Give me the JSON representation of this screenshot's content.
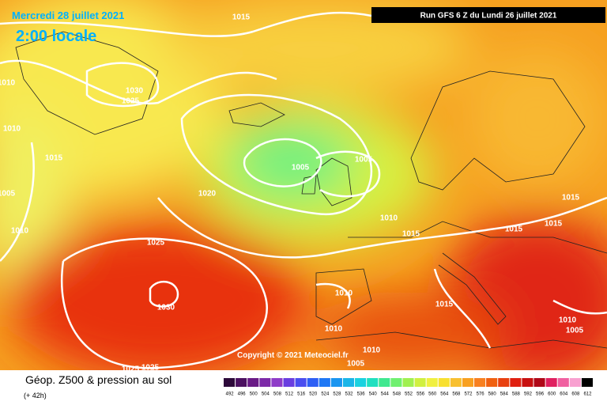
{
  "header": {
    "date": "Mercredi 28 juillet 2021",
    "time": "2:00 locale",
    "run": "Run GFS 6 Z du Lundi 26 juillet 2021"
  },
  "copyright": "Copyright © 2021 Meteociel.fr",
  "footer": {
    "title": "Géop. Z500 & pression au sol",
    "lead": "(+ 42h)"
  },
  "isobars": [
    1015,
    1030,
    1025,
    1010,
    1010,
    1015,
    1005,
    1010,
    1020,
    1005,
    1005,
    1010,
    1015,
    1015,
    1015,
    1015,
    1025,
    1030,
    1010,
    1015,
    1010,
    1010,
    1005,
    1010,
    1005,
    1025,
    1025
  ],
  "scale": {
    "labels": [
      492,
      496,
      500,
      504,
      508,
      512,
      516,
      520,
      524,
      528,
      532,
      536,
      540,
      544,
      548,
      552,
      556,
      560,
      564,
      568,
      572,
      576,
      580,
      584,
      588,
      592,
      596,
      600,
      604,
      608,
      612
    ],
    "colors": [
      "#2d0a3a",
      "#4b1060",
      "#6a1a86",
      "#7d2aa8",
      "#8f3cc8",
      "#6a3ee0",
      "#4a4ef0",
      "#2e5ff5",
      "#1f78f5",
      "#1a95f0",
      "#1ab5e8",
      "#1ad2e0",
      "#20e0c0",
      "#40e890",
      "#70f070",
      "#a0f050",
      "#d0f040",
      "#f0f040",
      "#f8e030",
      "#f8c030",
      "#f8a020",
      "#f88020",
      "#f06010",
      "#e84010",
      "#e02010",
      "#c81010",
      "#b00818",
      "#e02060",
      "#f060a0",
      "#f8a0d0",
      "#000000"
    ]
  }
}
